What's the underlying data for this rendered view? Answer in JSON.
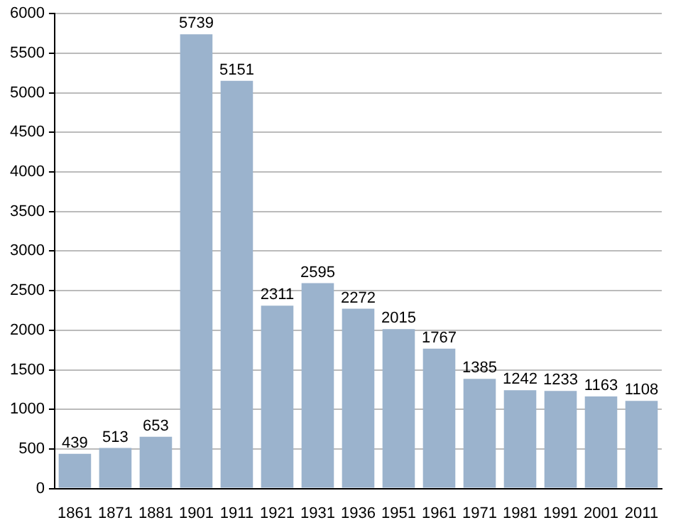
{
  "chart_data": {
    "type": "bar",
    "categories": [
      "1861",
      "1871",
      "1881",
      "1901",
      "1911",
      "1921",
      "1931",
      "1936",
      "1951",
      "1961",
      "1971",
      "1981",
      "1991",
      "2001",
      "2011"
    ],
    "values": [
      439,
      513,
      653,
      5739,
      5151,
      2311,
      2595,
      2272,
      2015,
      1767,
      1385,
      1242,
      1233,
      1163,
      1108
    ],
    "color": "#9bb3cd",
    "ylim": [
      0,
      6000
    ],
    "yticks": [
      0,
      500,
      1000,
      1500,
      2000,
      2500,
      3000,
      3500,
      4000,
      4500,
      5000,
      5500,
      6000
    ],
    "grid": "y",
    "data_labels": true,
    "legend": false
  }
}
